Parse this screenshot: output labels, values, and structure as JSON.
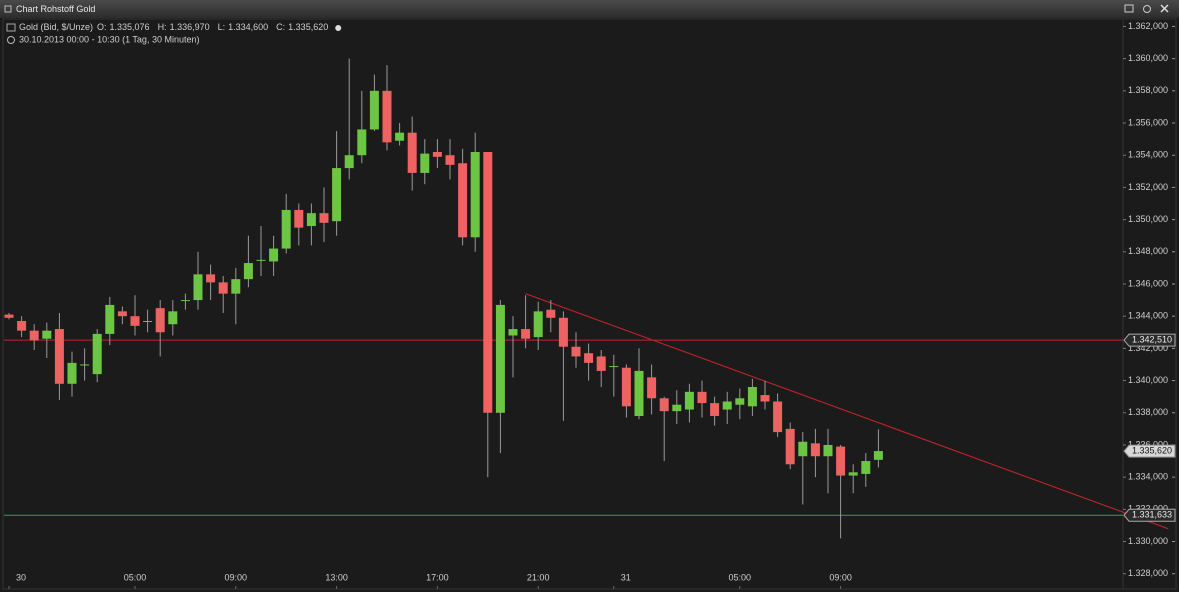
{
  "window_title": "Chart Rohstoff Gold",
  "chart_data": {
    "type": "candlestick",
    "summary": {
      "name": "Gold (Bid, $/Unze)",
      "fields": [
        {
          "key": "O:",
          "value": "1.335,076"
        },
        {
          "key": "H:",
          "value": "1.336,970"
        },
        {
          "key": "L:",
          "value": "1.334,600"
        },
        {
          "key": "C:",
          "value": "1.335,620"
        }
      ]
    },
    "period": "30.10.2013 00:00 - 10:30 (1 Tag, 30 Minuten)",
    "categories": [
      "30",
      null,
      null,
      null,
      null,
      null,
      null,
      null,
      null,
      null,
      "05:00",
      null,
      null,
      null,
      null,
      null,
      null,
      null,
      "09:00",
      null,
      null,
      null,
      null,
      null,
      null,
      null,
      "13:00",
      null,
      null,
      null,
      null,
      null,
      null,
      null,
      "17:00",
      null,
      null,
      null,
      null,
      null,
      null,
      null,
      "21:00",
      null,
      null,
      null,
      null,
      null,
      "31",
      null,
      null,
      null,
      null,
      null,
      null,
      null,
      null,
      null,
      "05:00",
      null,
      null,
      null,
      null,
      null,
      null,
      null,
      "09:00",
      null,
      null,
      null
    ],
    "open": [
      1344.1,
      1343.7,
      1343.1,
      1342.6,
      1343.2,
      1339.8,
      1341.0,
      1340.4,
      1342.9,
      1344.3,
      1344.0,
      1343.7,
      1344.5,
      1343.5,
      1345.0,
      1345.0,
      1346.6,
      1346.1,
      1345.4,
      1346.3,
      1347.5,
      1347.4,
      1348.2,
      1350.6,
      1349.6,
      1350.4,
      1349.9,
      1353.2,
      1354.0,
      1355.6,
      1358.0,
      1354.9,
      1355.4,
      1352.9,
      1354.2,
      1354.0,
      1353.5,
      1348.9,
      1354.2,
      1338.0,
      1342.8,
      1343.2,
      1342.7,
      1344.4,
      1343.9,
      1342.1,
      1341.7,
      1341.5,
      1340.9,
      1340.8,
      1337.8,
      1340.2,
      1338.9,
      1338.1,
      1338.2,
      1339.3,
      1338.6,
      1338.2,
      1338.5,
      1338.4,
      1339.1,
      1338.7,
      1337.0,
      1335.3,
      1336.1,
      1335.3,
      1335.9,
      1334.1,
      1334.2,
      1335.076
    ],
    "high": [
      1344.2,
      1344.0,
      1343.5,
      1343.6,
      1344.2,
      1341.8,
      1342.0,
      1343.2,
      1345.2,
      1344.6,
      1345.3,
      1344.4,
      1345.0,
      1345.0,
      1345.4,
      1348.0,
      1347.2,
      1346.5,
      1347.0,
      1349.0,
      1349.6,
      1349.0,
      1351.6,
      1351.0,
      1351.0,
      1352.0,
      1355.5,
      1360.0,
      1358.0,
      1359.0,
      1359.6,
      1356.0,
      1356.4,
      1355.0,
      1355.0,
      1355.0,
      1354.4,
      1355.4,
      1354.2,
      1345.0,
      1344.0,
      1345.3,
      1344.9,
      1345.0,
      1344.3,
      1343.0,
      1342.3,
      1341.9,
      1341.6,
      1341.0,
      1342.0,
      1341.0,
      1339.0,
      1339.4,
      1339.8,
      1340.0,
      1339.0,
      1339.3,
      1339.5,
      1340.1,
      1340.0,
      1339.2,
      1337.4,
      1336.8,
      1337.0,
      1337.0,
      1336.0,
      1334.8,
      1335.5,
      1336.97
    ],
    "low": [
      1343.8,
      1342.7,
      1341.9,
      1341.4,
      1338.8,
      1339.0,
      1340.0,
      1339.9,
      1342.2,
      1343.5,
      1342.8,
      1343.0,
      1341.5,
      1342.8,
      1344.4,
      1344.4,
      1345.0,
      1344.2,
      1343.5,
      1345.8,
      1346.5,
      1346.5,
      1347.9,
      1348.4,
      1348.4,
      1348.6,
      1349.0,
      1352.5,
      1353.5,
      1355.5,
      1354.3,
      1354.6,
      1351.8,
      1352.2,
      1353.2,
      1352.5,
      1348.4,
      1348.0,
      1334.0,
      1335.5,
      1340.2,
      1342.0,
      1341.9,
      1343.0,
      1337.5,
      1340.8,
      1340.0,
      1339.6,
      1339.0,
      1337.7,
      1337.6,
      1337.9,
      1335.0,
      1337.3,
      1337.4,
      1337.7,
      1337.2,
      1337.3,
      1337.6,
      1337.8,
      1338.2,
      1336.5,
      1334.5,
      1332.3,
      1334.0,
      1333.0,
      1330.2,
      1333.0,
      1333.4,
      1334.6
    ],
    "close": [
      1343.9,
      1343.1,
      1342.5,
      1343.1,
      1339.8,
      1341.1,
      1341.0,
      1342.9,
      1344.7,
      1344.0,
      1343.4,
      1343.7,
      1343.0,
      1344.3,
      1345.0,
      1346.6,
      1346.1,
      1345.4,
      1346.3,
      1347.3,
      1347.5,
      1348.2,
      1350.6,
      1349.5,
      1350.4,
      1349.8,
      1353.2,
      1354.0,
      1355.6,
      1358.0,
      1354.8,
      1355.4,
      1352.9,
      1354.1,
      1353.9,
      1353.4,
      1348.9,
      1354.2,
      1338.0,
      1344.7,
      1343.2,
      1342.6,
      1344.3,
      1343.9,
      1342.1,
      1341.5,
      1341.1,
      1340.6,
      1340.9,
      1338.4,
      1340.6,
      1338.9,
      1338.1,
      1338.5,
      1339.3,
      1338.6,
      1337.8,
      1338.7,
      1338.9,
      1339.6,
      1338.7,
      1336.8,
      1334.8,
      1336.2,
      1335.3,
      1336.0,
      1334.1,
      1334.3,
      1335.0,
      1335.62
    ],
    "up_color": "#6cc644",
    "down_color": "#ee6262",
    "ylim": [
      1327.3,
      1362.4
    ],
    "yticks": [
      {
        "value": 1328,
        "label": "1.328,000"
      },
      {
        "value": 1330,
        "label": "1.330,000"
      },
      {
        "value": 1332,
        "label": "1.332,000"
      },
      {
        "value": 1334,
        "label": "1.334,000"
      },
      {
        "value": 1336,
        "label": "1.336,000"
      },
      {
        "value": 1338,
        "label": "1.338,000"
      },
      {
        "value": 1340,
        "label": "1.340,000"
      },
      {
        "value": 1342,
        "label": "1.342,000"
      },
      {
        "value": 1344,
        "label": "1.344,000"
      },
      {
        "value": 1346,
        "label": "1.346,000"
      },
      {
        "value": 1348,
        "label": "1.348,000"
      },
      {
        "value": 1350,
        "label": "1.350,000"
      },
      {
        "value": 1352,
        "label": "1.352,000"
      },
      {
        "value": 1354,
        "label": "1.354,000"
      },
      {
        "value": 1356,
        "label": "1.356,000"
      },
      {
        "value": 1358,
        "label": "1.358,000"
      },
      {
        "value": 1360,
        "label": "1.360,000"
      },
      {
        "value": 1362,
        "label": "1.362,000"
      }
    ],
    "hlines": [
      {
        "value": 1342.51,
        "label": "1.342,510",
        "color": "#c0262c"
      },
      {
        "value": 1331.633,
        "label": "1.331,633",
        "color": "#2aa836"
      }
    ],
    "last_price": {
      "value": 1335.62,
      "label": "1.335,620"
    },
    "trendline": {
      "from": [
        41,
        1345.4
      ],
      "to": [
        92,
        1330.8
      ],
      "color": "#b5232a"
    }
  }
}
